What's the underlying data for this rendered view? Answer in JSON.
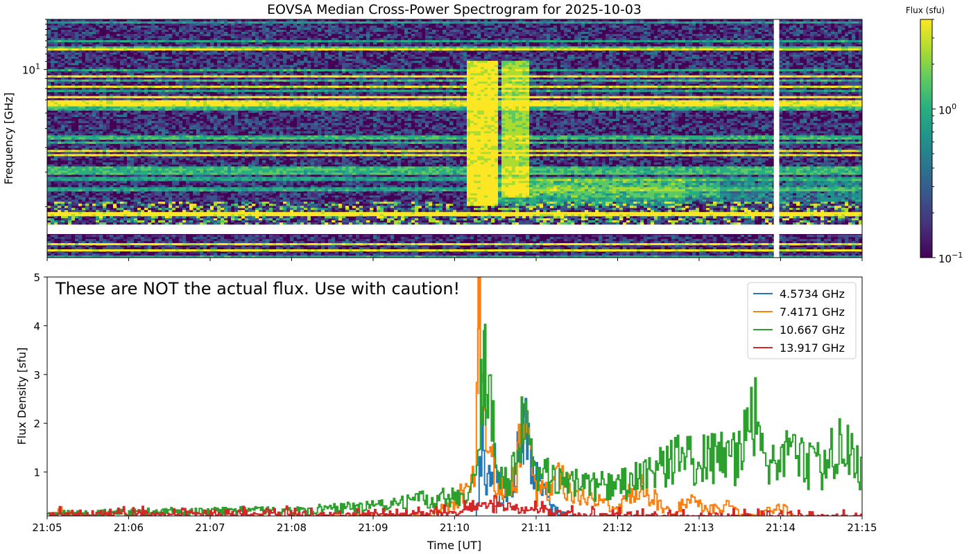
{
  "figure": {
    "title": "EOVSA Median Cross-Power Spectrogram for 2025-10-03",
    "warning": "These are NOT the actual flux. Use with caution!"
  },
  "chart_data": [
    {
      "type": "heatmap",
      "title": "EOVSA Median Cross-Power Spectrogram for 2025-10-03",
      "xlabel": "",
      "ylabel": "Frequency [GHz]",
      "x_range": [
        "21:05",
        "21:15"
      ],
      "y_scale": "log",
      "y_range": [
        1.1,
        18.0
      ],
      "y_tick_labels": [
        {
          "label": "10",
          "exponent": "1",
          "value": 10
        }
      ],
      "colorbar": {
        "title": "Flux (sfu)",
        "scale": "log",
        "colormap": "viridis",
        "range": [
          0.1,
          4.0
        ],
        "tick_labels": [
          {
            "label": "10",
            "exponent": "0",
            "value": 1
          },
          {
            "label": "10",
            "exponent": "−1",
            "value": 0.1
          }
        ]
      },
      "gaps": {
        "time": [
          "21:13:55",
          "21:13:59"
        ],
        "frequency": [
          1.45,
          1.62
        ]
      },
      "features": [
        {
          "time": "21:10:20",
          "duration_s": 12,
          "fmin": 2.0,
          "fmax": 11.0,
          "level": 3.0
        },
        {
          "time": "21:10:45",
          "duration_s": 10,
          "fmin": 2.2,
          "fmax": 11.0,
          "level": 2.0
        }
      ]
    },
    {
      "type": "line",
      "title": "",
      "xlabel": "Time [UT]",
      "ylabel": "Flux Density [sfu]",
      "categories": [
        "21:05",
        "21:06",
        "21:07",
        "21:08",
        "21:09",
        "21:10",
        "21:11",
        "21:12",
        "21:13",
        "21:14",
        "21:15"
      ],
      "ylim": [
        0.1,
        5
      ],
      "y_ticks": [
        1,
        2,
        3,
        4,
        5
      ],
      "legend": "top-right",
      "series": [
        {
          "name": "4.5734 GHz",
          "color": "#1f77b4",
          "keypoints": [
            [
              "21:05:00",
              0.05
            ],
            [
              "21:10:15",
              0.05
            ],
            [
              "21:10:20",
              1.5
            ],
            [
              "21:10:24",
              0.7
            ],
            [
              "21:10:28",
              1.3
            ],
            [
              "21:10:35",
              0.3
            ],
            [
              "21:10:45",
              1.0
            ],
            [
              "21:10:50",
              2.3
            ],
            [
              "21:10:55",
              1.2
            ],
            [
              "21:11:00",
              0.9
            ],
            [
              "21:11:10",
              0.3
            ],
            [
              "21:11:20",
              0.15
            ],
            [
              "21:11:30",
              0.05
            ],
            [
              "21:15:00",
              0.05
            ]
          ]
        },
        {
          "name": "7.4171 GHz",
          "color": "#ff7f0e",
          "keypoints": [
            [
              "21:05:00",
              0.05
            ],
            [
              "21:05:10",
              0.2
            ],
            [
              "21:05:20",
              0.1
            ],
            [
              "21:06:00",
              0.05
            ],
            [
              "21:09:40",
              0.1
            ],
            [
              "21:10:00",
              0.4
            ],
            [
              "21:10:15",
              0.9
            ],
            [
              "21:10:18",
              5.2
            ],
            [
              "21:10:21",
              2.5
            ],
            [
              "21:10:26",
              1.7
            ],
            [
              "21:10:30",
              0.6
            ],
            [
              "21:10:45",
              0.8
            ],
            [
              "21:10:50",
              2.4
            ],
            [
              "21:10:55",
              1.2
            ],
            [
              "21:11:00",
              0.5
            ],
            [
              "21:11:15",
              0.9
            ],
            [
              "21:11:30",
              0.5
            ],
            [
              "21:11:50",
              0.4
            ],
            [
              "21:12:00",
              0.2
            ],
            [
              "21:12:15",
              0.8
            ],
            [
              "21:12:25",
              0.5
            ],
            [
              "21:12:40",
              0.1
            ],
            [
              "21:12:55",
              0.6
            ],
            [
              "21:13:05",
              0.2
            ],
            [
              "21:13:20",
              0.3
            ],
            [
              "21:13:35",
              0.05
            ],
            [
              "21:14:00",
              0.3
            ],
            [
              "21:14:10",
              0.05
            ],
            [
              "21:15:00",
              0.05
            ]
          ]
        },
        {
          "name": "10.667 GHz",
          "color": "#2ca02c",
          "keypoints": [
            [
              "21:05:00",
              0.15
            ],
            [
              "21:07:00",
              0.2
            ],
            [
              "21:08:00",
              0.2
            ],
            [
              "21:09:00",
              0.3
            ],
            [
              "21:10:00",
              0.5
            ],
            [
              "21:10:15",
              0.8
            ],
            [
              "21:10:19",
              2.5
            ],
            [
              "21:10:22",
              3.9
            ],
            [
              "21:10:26",
              2.3
            ],
            [
              "21:10:32",
              1.0
            ],
            [
              "21:10:40",
              0.7
            ],
            [
              "21:10:50",
              1.9
            ],
            [
              "21:11:00",
              1.0
            ],
            [
              "21:11:30",
              0.75
            ],
            [
              "21:12:00",
              0.7
            ],
            [
              "21:12:20",
              1.0
            ],
            [
              "21:12:40",
              1.2
            ],
            [
              "21:13:00",
              1.3
            ],
            [
              "21:13:30",
              1.3
            ],
            [
              "21:13:42",
              2.6
            ],
            [
              "21:13:48",
              1.3
            ],
            [
              "21:14:00",
              1.3
            ],
            [
              "21:14:30",
              1.1
            ],
            [
              "21:14:45",
              1.6
            ],
            [
              "21:15:00",
              1.0
            ]
          ]
        },
        {
          "name": "13.917 GHz",
          "color": "#d62728",
          "keypoints": [
            [
              "21:05:00",
              0.12
            ],
            [
              "21:08:00",
              0.12
            ],
            [
              "21:09:30",
              0.12
            ],
            [
              "21:10:00",
              0.2
            ],
            [
              "21:10:30",
              0.3
            ],
            [
              "21:11:00",
              0.2
            ],
            [
              "21:11:30",
              0.12
            ],
            [
              "21:13:00",
              0.08
            ],
            [
              "21:15:00",
              0.08
            ]
          ]
        }
      ]
    }
  ]
}
